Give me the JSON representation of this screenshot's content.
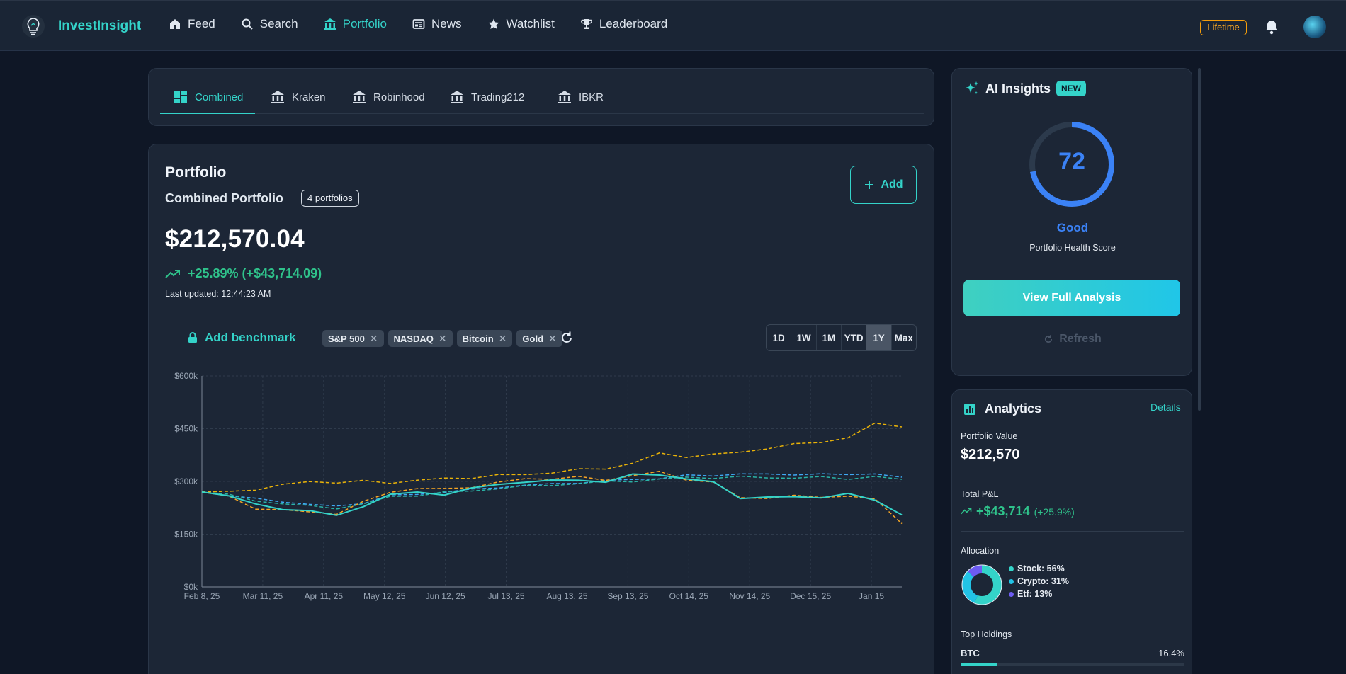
{
  "app": {
    "name": "InvestInsight"
  },
  "nav": [
    {
      "label": "Feed",
      "icon": "home-icon"
    },
    {
      "label": "Search",
      "icon": "search-icon"
    },
    {
      "label": "Portfolio",
      "icon": "bank-icon",
      "active": true
    },
    {
      "label": "News",
      "icon": "newspaper-icon"
    },
    {
      "label": "Watchlist",
      "icon": "star-icon"
    },
    {
      "label": "Leaderboard",
      "icon": "trophy-icon"
    }
  ],
  "header": {
    "plan_badge": "Lifetime"
  },
  "portfolio_tabs": [
    {
      "label": "Combined",
      "icon": "dashboard-icon",
      "active": true
    },
    {
      "label": "Kraken",
      "icon": "bank-icon"
    },
    {
      "label": "Robinhood",
      "icon": "bank-icon"
    },
    {
      "label": "Trading212",
      "icon": "bank-icon"
    },
    {
      "label": "IBKR",
      "icon": "bank-icon"
    }
  ],
  "portfolio": {
    "title": "Portfolio",
    "subtitle": "Combined Portfolio",
    "count_badge": "4 portfolios",
    "add_label": "Add",
    "value": "$212,570.04",
    "change": "+25.89% (+$43,714.09)",
    "updated": "Last updated: 12:44:23 AM"
  },
  "benchmark": {
    "add_label": "Add benchmark",
    "chips": [
      "S&P 500",
      "NASDAQ",
      "Bitcoin",
      "Gold"
    ]
  },
  "ranges": {
    "options": [
      "1D",
      "1W",
      "1M",
      "YTD",
      "1Y",
      "Max"
    ],
    "selected": "1Y"
  },
  "chart_data": {
    "type": "line",
    "title": "",
    "xlabel": "",
    "ylabel": "",
    "ylim": [
      0,
      600000
    ],
    "y_ticks": [
      "$0k",
      "$150k",
      "$300k",
      "$450k",
      "$600k"
    ],
    "x_ticks": [
      "Feb 8, 25",
      "Mar 11, 25",
      "Apr 11, 25",
      "May 12, 25",
      "Jun 12, 25",
      "Jul 13, 25",
      "Aug 13, 25",
      "Sep 13, 25",
      "Oct 14, 25",
      "Nov 14, 25",
      "Dec 15, 25",
      "Jan 15"
    ],
    "grid": true,
    "colors": {
      "portfolio": "#34d3c9",
      "sp500": "#3fa9f5",
      "nasdaq": "#2ab3a6",
      "bitcoin": "#f5a524",
      "gold": "#eab308"
    },
    "series": [
      {
        "values": [
          270000,
          262000,
          232000,
          222000,
          218000,
          200000,
          232000,
          262000,
          268000,
          265000,
          278000,
          292000,
          300000,
          300000,
          306000,
          298000,
          318000,
          322000,
          305000,
          298000,
          255000,
          252000,
          258000,
          255000,
          262000,
          250000,
          205000
        ],
        "style": "solid",
        "color": "#34d3c9"
      },
      {
        "values": [
          270000,
          258000,
          250000,
          245000,
          232000,
          230000,
          240000,
          258000,
          265000,
          270000,
          275000,
          285000,
          288000,
          292000,
          298000,
          300000,
          306000,
          310000,
          315000,
          318000,
          322000,
          318000,
          322000,
          320000,
          318000,
          325000,
          312000
        ],
        "style": "dashed",
        "color": "#3fa9f5"
      },
      {
        "values": [
          270000,
          260000,
          245000,
          238000,
          228000,
          225000,
          236000,
          255000,
          262000,
          268000,
          272000,
          282000,
          285000,
          290000,
          295000,
          298000,
          302000,
          306000,
          310000,
          312000,
          312000,
          310000,
          312000,
          310000,
          308000,
          315000,
          306000
        ],
        "style": "dashed",
        "color": "#2ab3a6"
      },
      {
        "values": [
          270000,
          255000,
          225000,
          218000,
          212000,
          210000,
          240000,
          270000,
          282000,
          276000,
          285000,
          298000,
          305000,
          310000,
          312000,
          302000,
          320000,
          325000,
          305000,
          300000,
          250000,
          255000,
          260000,
          252000,
          262000,
          248000,
          180000
        ],
        "style": "dashed",
        "color": "#f5a524"
      },
      {
        "values": [
          270000,
          272000,
          278000,
          288000,
          302000,
          296000,
          300000,
          298000,
          302000,
          308000,
          312000,
          316000,
          320000,
          326000,
          332000,
          338000,
          352000,
          378000,
          372000,
          376000,
          382000,
          396000,
          404000,
          412000,
          426000,
          462000,
          455000
        ],
        "style": "dashed",
        "color": "#eab308"
      }
    ]
  },
  "ai_insights": {
    "title": "AI Insights",
    "badge": "NEW",
    "score": 72,
    "score_label": "Good",
    "score_sub": "Portfolio Health Score",
    "cta": "View Full Analysis",
    "refresh": "Refresh"
  },
  "analytics": {
    "title": "Analytics",
    "details": "Details",
    "portfolio_value_label": "Portfolio Value",
    "portfolio_value": "$212,570",
    "pnl_label": "Total P&L",
    "pnl_value": "+$43,714",
    "pnl_pct": "(+25.9%)",
    "allocation_label": "Allocation",
    "allocation": [
      {
        "label": "Stock: 56%",
        "pct": 56,
        "color": "#34d3c9"
      },
      {
        "label": "Crypto: 31%",
        "pct": 31,
        "color": "#22c3e6"
      },
      {
        "label": "Etf: 13%",
        "pct": 13,
        "color": "#6d5cf2"
      }
    ],
    "top_holdings_label": "Top Holdings",
    "top_holding": {
      "symbol": "BTC",
      "pct": "16.4%",
      "fraction": 0.164
    }
  }
}
